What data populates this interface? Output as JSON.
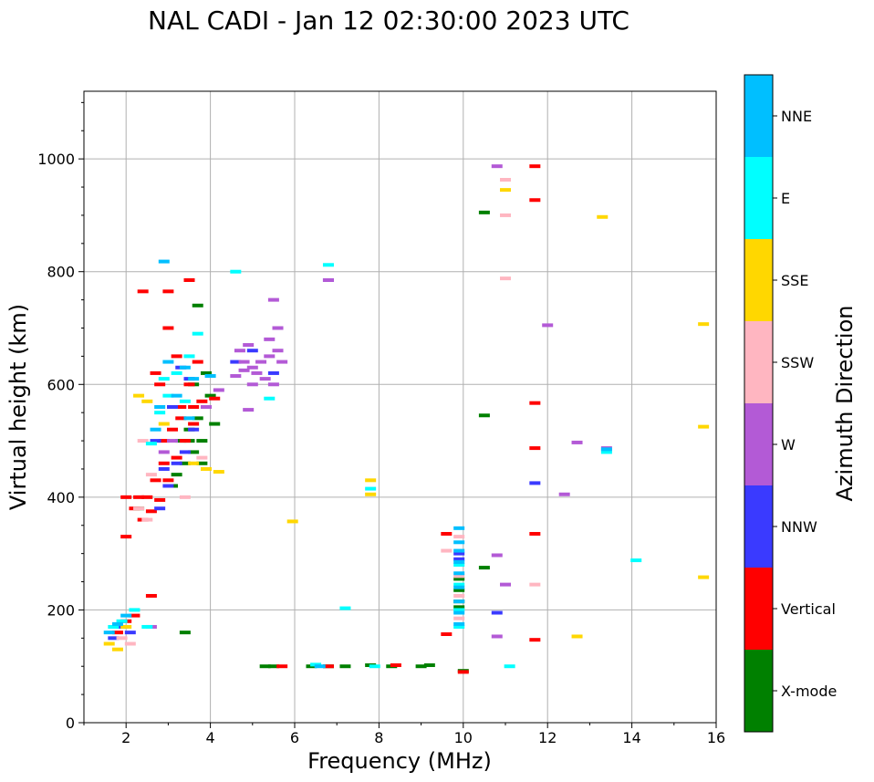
{
  "chart_data": {
    "type": "scatter",
    "title": "NAL CADI - Jan 12 02:30:00 2023 UTC",
    "xlabel": "Frequency (MHz)",
    "ylabel": "Virtual height (km)",
    "xlim": [
      1,
      16
    ],
    "ylim": [
      0,
      1120
    ],
    "xticks": [
      2,
      4,
      6,
      8,
      10,
      12,
      14,
      16
    ],
    "yticks": [
      0,
      200,
      400,
      600,
      800,
      1000
    ],
    "grid": true,
    "colorbar": {
      "title": "Azimuth Direction",
      "categories": [
        {
          "name": "X-mode",
          "color": "#008000"
        },
        {
          "name": "Vertical",
          "color": "#ff0000"
        },
        {
          "name": "NNW",
          "color": "#3a3aff"
        },
        {
          "name": "W",
          "color": "#b35ad6"
        },
        {
          "name": "SSW",
          "color": "#ffb6c1"
        },
        {
          "name": "SSE",
          "color": "#ffd700"
        },
        {
          "name": "E",
          "color": "#00ffff"
        },
        {
          "name": "NNE",
          "color": "#00bfff"
        }
      ]
    },
    "series": [
      {
        "name": "X-mode",
        "points": [
          [
            5.3,
            100
          ],
          [
            5.5,
            100
          ],
          [
            6.4,
            100
          ],
          [
            6.8,
            100
          ],
          [
            7.2,
            100
          ],
          [
            7.8,
            102
          ],
          [
            8.3,
            100
          ],
          [
            9.0,
            100
          ],
          [
            9.2,
            102
          ],
          [
            10.0,
            92
          ],
          [
            9.9,
            205
          ],
          [
            9.9,
            215
          ],
          [
            9.9,
            235
          ],
          [
            9.9,
            255
          ],
          [
            10.5,
            275
          ],
          [
            10.5,
            545
          ],
          [
            10.5,
            905
          ],
          [
            3.2,
            440
          ],
          [
            3.4,
            460
          ],
          [
            3.6,
            480
          ],
          [
            3.8,
            500
          ],
          [
            3.3,
            500
          ],
          [
            3.5,
            520
          ],
          [
            3.7,
            540
          ],
          [
            3.9,
            560
          ],
          [
            4.0,
            580
          ],
          [
            3.6,
            600
          ],
          [
            3.9,
            620
          ],
          [
            4.1,
            530
          ],
          [
            3.7,
            740
          ],
          [
            2.3,
            380
          ],
          [
            3.4,
            160
          ],
          [
            3.1,
            420
          ],
          [
            3.5,
            500
          ],
          [
            3.8,
            460
          ]
        ]
      },
      {
        "name": "Vertical",
        "points": [
          [
            5.7,
            100
          ],
          [
            6.8,
            100
          ],
          [
            8.4,
            102
          ],
          [
            10.0,
            90
          ],
          [
            9.6,
            157
          ],
          [
            9.6,
            335
          ],
          [
            11.7,
            147
          ],
          [
            11.7,
            335
          ],
          [
            11.7,
            487
          ],
          [
            11.7,
            567
          ],
          [
            11.7,
            927
          ],
          [
            11.7,
            987
          ],
          [
            2.0,
            400
          ],
          [
            2.2,
            380
          ],
          [
            2.4,
            360
          ],
          [
            2.6,
            375
          ],
          [
            2.8,
            395
          ],
          [
            3.0,
            430
          ],
          [
            3.2,
            470
          ],
          [
            3.4,
            500
          ],
          [
            3.6,
            530
          ],
          [
            3.8,
            570
          ],
          [
            2.7,
            430
          ],
          [
            2.9,
            460
          ],
          [
            3.1,
            520
          ],
          [
            3.3,
            560
          ],
          [
            3.5,
            600
          ],
          [
            3.7,
            640
          ],
          [
            2.9,
            500
          ],
          [
            2.7,
            620
          ],
          [
            3.0,
            700
          ],
          [
            3.2,
            650
          ],
          [
            2.4,
            765
          ],
          [
            3.0,
            765
          ],
          [
            3.5,
            785
          ],
          [
            2.8,
            600
          ],
          [
            1.8,
            160
          ],
          [
            2.0,
            180
          ],
          [
            2.2,
            190
          ],
          [
            2.6,
            225
          ],
          [
            2.0,
            330
          ],
          [
            2.3,
            400
          ],
          [
            3.6,
            560
          ],
          [
            4.1,
            575
          ],
          [
            2.5,
            400
          ],
          [
            3.3,
            540
          ]
        ]
      },
      {
        "name": "NNW",
        "points": [
          [
            6.8,
            785
          ],
          [
            11.7,
            425
          ],
          [
            10.8,
            195
          ],
          [
            9.9,
            290
          ],
          [
            9.9,
            300
          ],
          [
            2.8,
            380
          ],
          [
            3.0,
            420
          ],
          [
            3.2,
            460
          ],
          [
            2.9,
            450
          ],
          [
            3.4,
            480
          ],
          [
            3.6,
            520
          ],
          [
            3.1,
            560
          ],
          [
            3.3,
            630
          ],
          [
            3.5,
            610
          ],
          [
            2.7,
            500
          ],
          [
            1.7,
            150
          ],
          [
            1.9,
            170
          ],
          [
            2.1,
            160
          ],
          [
            4.6,
            640
          ],
          [
            5.0,
            660
          ],
          [
            5.5,
            620
          ]
        ]
      },
      {
        "name": "W",
        "points": [
          [
            4.6,
            615
          ],
          [
            4.8,
            625
          ],
          [
            5.0,
            630
          ],
          [
            5.2,
            640
          ],
          [
            5.4,
            650
          ],
          [
            5.6,
            660
          ],
          [
            4.7,
            660
          ],
          [
            4.9,
            670
          ],
          [
            5.1,
            620
          ],
          [
            5.3,
            610
          ],
          [
            5.5,
            600
          ],
          [
            5.7,
            640
          ],
          [
            4.8,
            640
          ],
          [
            5.0,
            600
          ],
          [
            5.4,
            680
          ],
          [
            5.6,
            700
          ],
          [
            5.5,
            750
          ],
          [
            4.9,
            555
          ],
          [
            6.8,
            785
          ],
          [
            10.8,
            987
          ],
          [
            10.8,
            297
          ],
          [
            10.8,
            153
          ],
          [
            11.0,
            245
          ],
          [
            12.0,
            705
          ],
          [
            12.4,
            405
          ],
          [
            12.7,
            497
          ],
          [
            13.4,
            487
          ],
          [
            2.9,
            480
          ],
          [
            3.1,
            500
          ],
          [
            2.6,
            170
          ],
          [
            4.2,
            590
          ],
          [
            3.9,
            560
          ]
        ]
      },
      {
        "name": "SSW",
        "points": [
          [
            11.0,
            963
          ],
          [
            11.0,
            900
          ],
          [
            11.0,
            788
          ],
          [
            11.7,
            245
          ],
          [
            9.6,
            305
          ],
          [
            9.9,
            330
          ],
          [
            9.9,
            260
          ],
          [
            9.9,
            225
          ],
          [
            2.5,
            360
          ],
          [
            2.3,
            380
          ],
          [
            2.6,
            440
          ],
          [
            2.4,
            500
          ],
          [
            1.9,
            150
          ],
          [
            2.1,
            140
          ],
          [
            3.8,
            470
          ],
          [
            3.4,
            400
          ],
          [
            9.9,
            185
          ]
        ]
      },
      {
        "name": "SSE",
        "points": [
          [
            11.0,
            945
          ],
          [
            13.3,
            897
          ],
          [
            15.7,
            707
          ],
          [
            15.7,
            525
          ],
          [
            15.7,
            258
          ],
          [
            12.7,
            153
          ],
          [
            7.8,
            430
          ],
          [
            7.8,
            405
          ],
          [
            5.95,
            357
          ],
          [
            2.5,
            570
          ],
          [
            2.3,
            580
          ],
          [
            1.6,
            140
          ],
          [
            1.8,
            130
          ],
          [
            3.6,
            460
          ],
          [
            3.9,
            450
          ],
          [
            2.9,
            530
          ],
          [
            4.2,
            445
          ],
          [
            2.0,
            170
          ]
        ]
      },
      {
        "name": "E",
        "points": [
          [
            6.8,
            812
          ],
          [
            7.8,
            415
          ],
          [
            7.2,
            203
          ],
          [
            6.5,
            103
          ],
          [
            7.9,
            100
          ],
          [
            11.1,
            100
          ],
          [
            13.4,
            480
          ],
          [
            14.1,
            288
          ],
          [
            4.6,
            800
          ],
          [
            5.4,
            575
          ],
          [
            2.6,
            495
          ],
          [
            2.8,
            550
          ],
          [
            3.0,
            580
          ],
          [
            3.2,
            620
          ],
          [
            3.5,
            650
          ],
          [
            3.7,
            690
          ],
          [
            2.9,
            610
          ],
          [
            3.4,
            570
          ],
          [
            1.7,
            170
          ],
          [
            1.9,
            180
          ],
          [
            2.2,
            200
          ],
          [
            2.5,
            170
          ],
          [
            9.9,
            280
          ],
          [
            9.9,
            245
          ],
          [
            9.9,
            200
          ],
          [
            9.9,
            170
          ]
        ]
      },
      {
        "name": "NNE",
        "points": [
          [
            2.9,
            818
          ],
          [
            3.4,
            630
          ],
          [
            3.6,
            610
          ],
          [
            3.0,
            640
          ],
          [
            2.8,
            560
          ],
          [
            3.2,
            580
          ],
          [
            3.5,
            540
          ],
          [
            2.7,
            520
          ],
          [
            4.0,
            615
          ],
          [
            9.9,
            175
          ],
          [
            9.9,
            195
          ],
          [
            9.9,
            215
          ],
          [
            9.9,
            240
          ],
          [
            9.9,
            265
          ],
          [
            9.9,
            285
          ],
          [
            9.9,
            305
          ],
          [
            9.9,
            320
          ],
          [
            9.9,
            345
          ],
          [
            1.6,
            160
          ],
          [
            1.8,
            175
          ],
          [
            2.0,
            190
          ],
          [
            6.6,
            100
          ],
          [
            13.4,
            485
          ]
        ]
      }
    ]
  }
}
